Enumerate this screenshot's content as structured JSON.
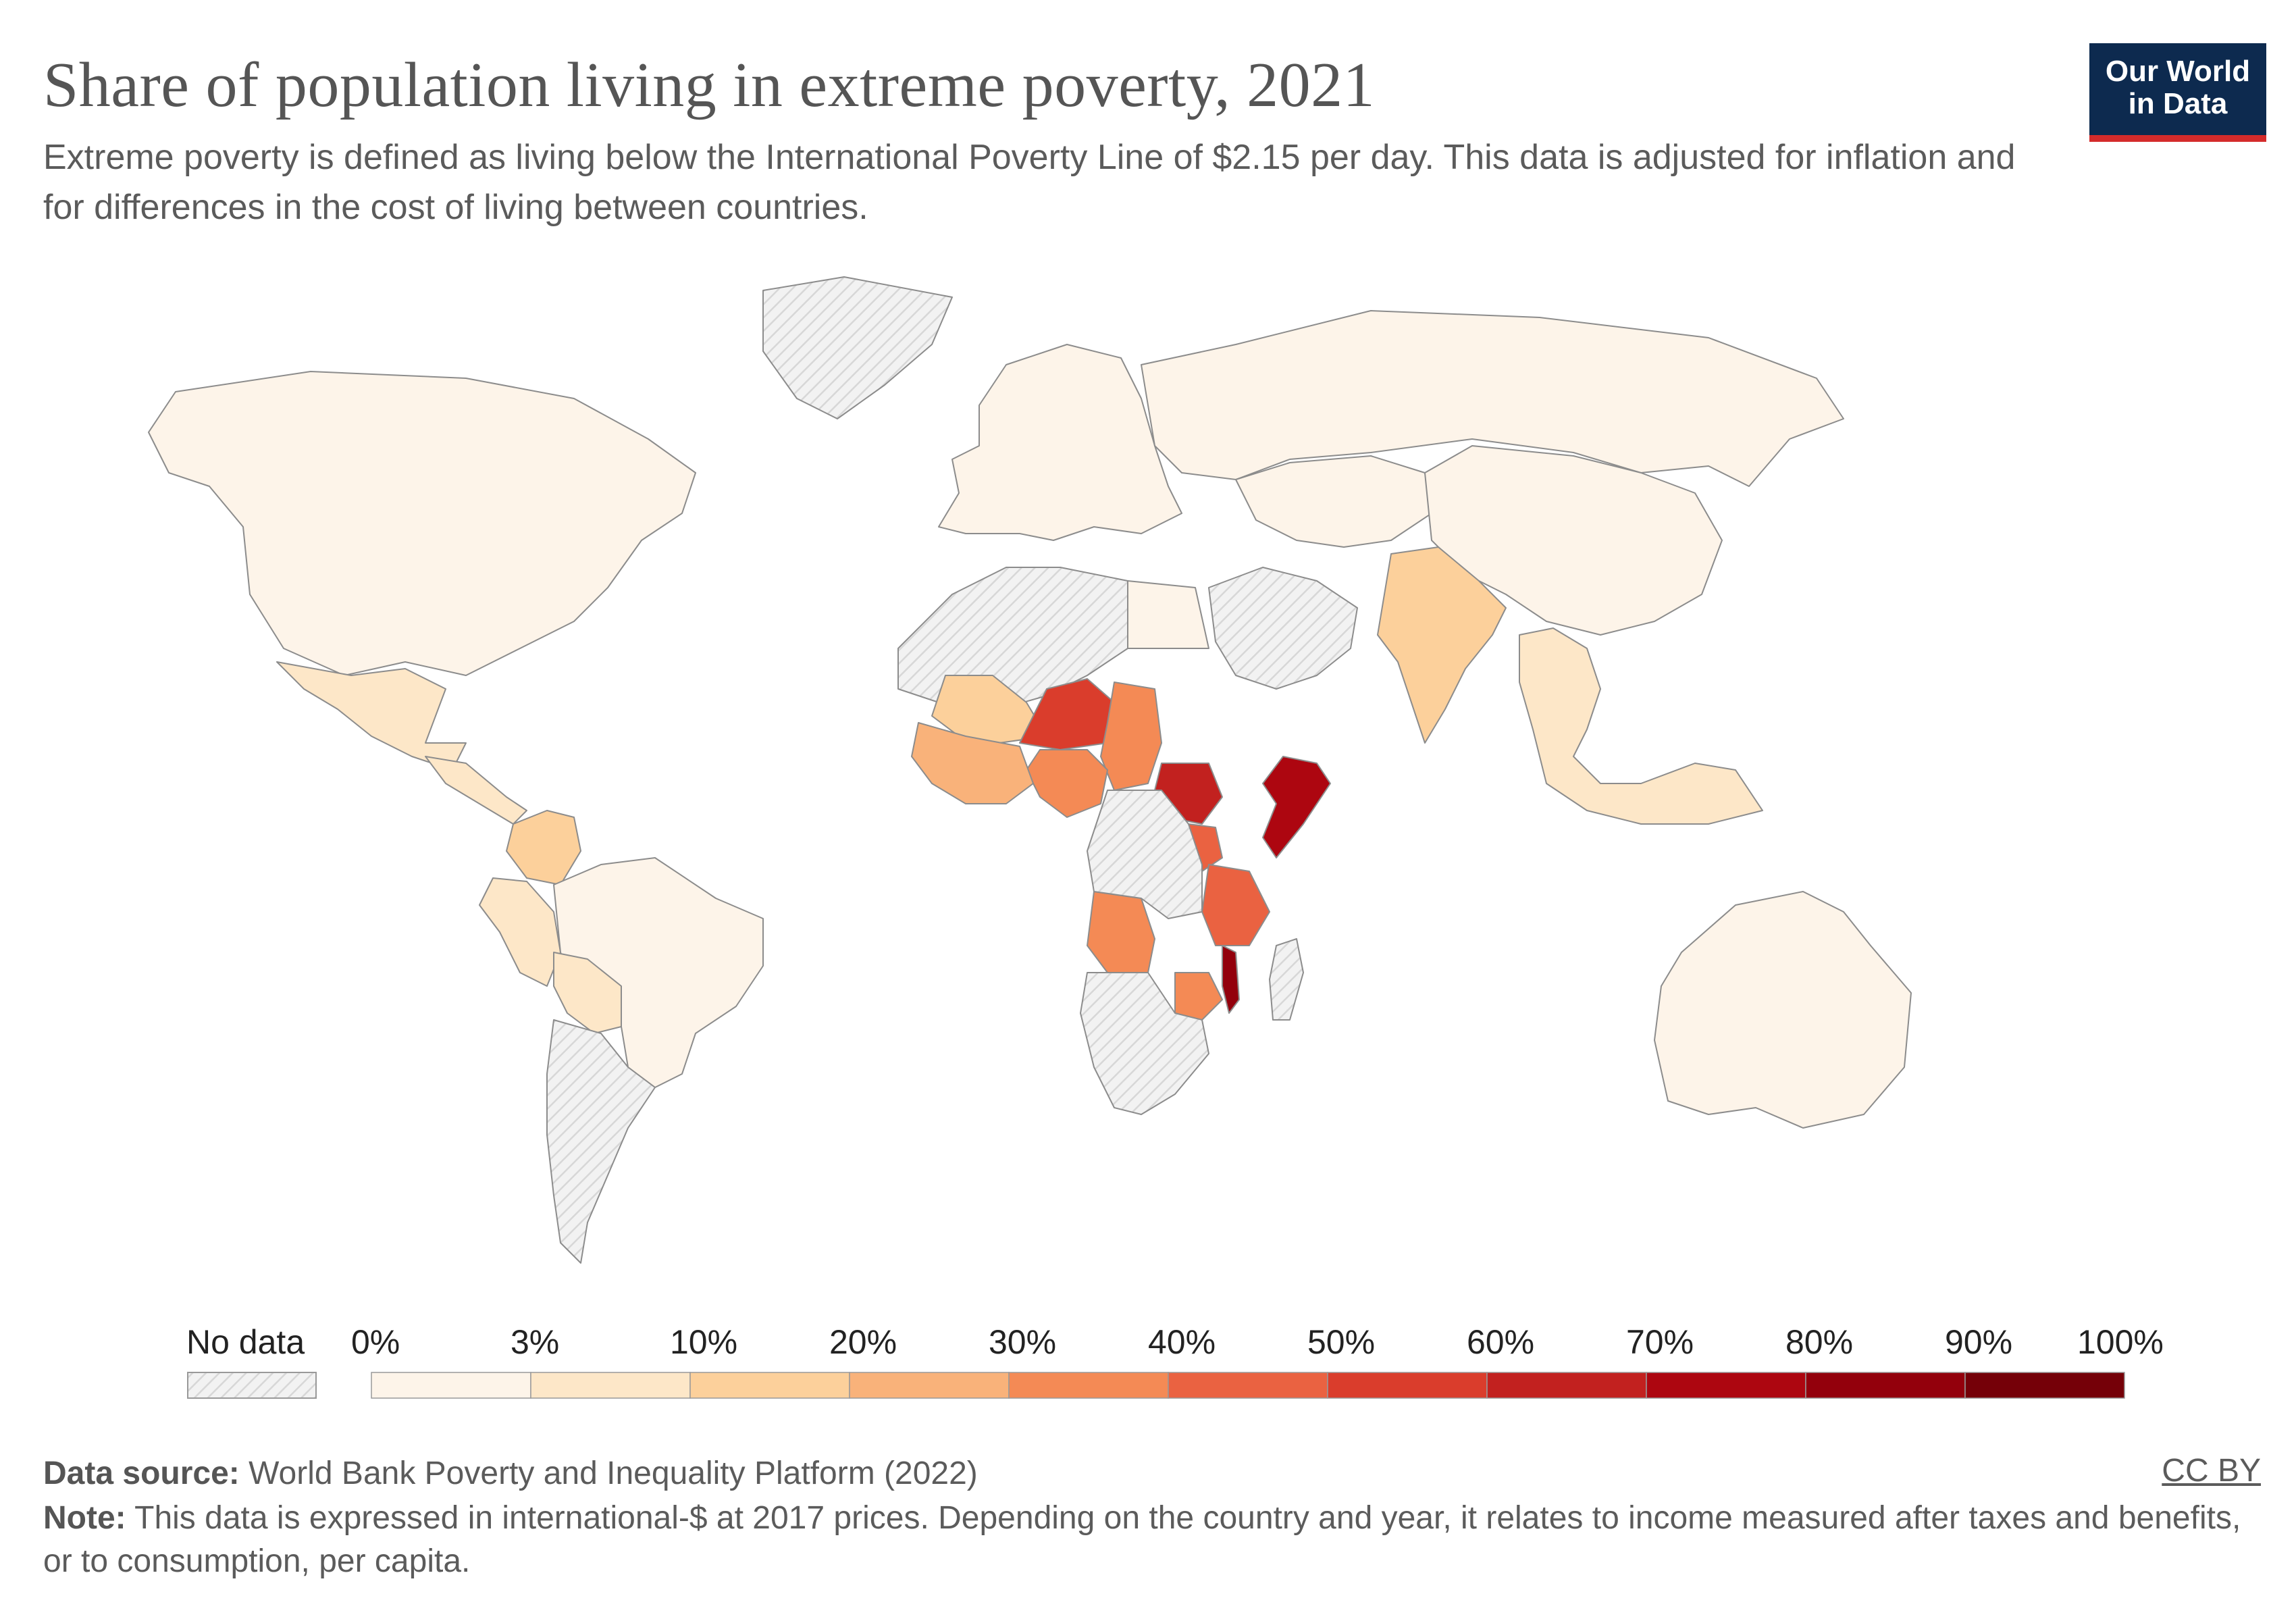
{
  "header": {
    "title": "Share of population living in extreme poverty, 2021",
    "subtitle": "Extreme poverty is defined as living below the International Poverty Line of $2.15 per day. This data is adjusted for inflation and for differences in the cost of living between countries.",
    "logo_line1": "Our World",
    "logo_line2": "in Data"
  },
  "legend": {
    "no_data_label": "No data",
    "bins": [
      {
        "label": "0%",
        "color": "#fdf4e9"
      },
      {
        "label": "3%",
        "color": "#fde7c8"
      },
      {
        "label": "10%",
        "color": "#fcd09b"
      },
      {
        "label": "20%",
        "color": "#f9b27a"
      },
      {
        "label": "30%",
        "color": "#f48a55"
      },
      {
        "label": "40%",
        "color": "#ea6241"
      },
      {
        "label": "50%",
        "color": "#da3d2c"
      },
      {
        "label": "60%",
        "color": "#c2211f"
      },
      {
        "label": "70%",
        "color": "#ad0610"
      },
      {
        "label": "80%",
        "color": "#93000c"
      },
      {
        "label": "90%",
        "color": "#750008"
      }
    ],
    "end_label": "100%"
  },
  "regions": [
    {
      "name": "North America",
      "bin": 0
    },
    {
      "name": "Mexico",
      "bin": 1
    },
    {
      "name": "Greenland",
      "bin": "none"
    },
    {
      "name": "Central America",
      "bin": 1
    },
    {
      "name": "Colombia",
      "bin": 2
    },
    {
      "name": "Peru",
      "bin": 1
    },
    {
      "name": "Brazil",
      "bin": 0
    },
    {
      "name": "Bolivia",
      "bin": 1
    },
    {
      "name": "Argentina",
      "bin": "none"
    },
    {
      "name": "Europe",
      "bin": 0
    },
    {
      "name": "Russia",
      "bin": 0
    },
    {
      "name": "Central Asia",
      "bin": 0
    },
    {
      "name": "China",
      "bin": 0
    },
    {
      "name": "India",
      "bin": 2
    },
    {
      "name": "Southeast Asia",
      "bin": 1
    },
    {
      "name": "Australia",
      "bin": 0
    },
    {
      "name": "North Africa",
      "bin": "none"
    },
    {
      "name": "Egypt",
      "bin": 0
    },
    {
      "name": "Mali",
      "bin": 2
    },
    {
      "name": "Niger",
      "bin": 6
    },
    {
      "name": "Chad",
      "bin": 4
    },
    {
      "name": "Nigeria",
      "bin": 4
    },
    {
      "name": "West Africa coast",
      "bin": 3
    },
    {
      "name": "South Sudan",
      "bin": 7
    },
    {
      "name": "Somalia",
      "bin": 8
    },
    {
      "name": "Uganda",
      "bin": 5
    },
    {
      "name": "Tanzania",
      "bin": 5
    },
    {
      "name": "Malawi",
      "bin": 9
    },
    {
      "name": "Angola",
      "bin": 4
    },
    {
      "name": "Zimbabwe",
      "bin": 4
    },
    {
      "name": "Central Africa",
      "bin": "none"
    },
    {
      "name": "Southern Africa",
      "bin": "none"
    },
    {
      "name": "Madagascar",
      "bin": "none"
    },
    {
      "name": "Middle East",
      "bin": "none"
    }
  ],
  "footer": {
    "source_label": "Data source:",
    "source_text": "World Bank Poverty and Inequality Platform (2022)",
    "note_label": "Note:",
    "note_text": "This data is expressed in international-$ at 2017 prices. Depending on the country and year, it relates to income measured after taxes and benefits, or to consumption, per capita.",
    "license": "CC BY"
  }
}
